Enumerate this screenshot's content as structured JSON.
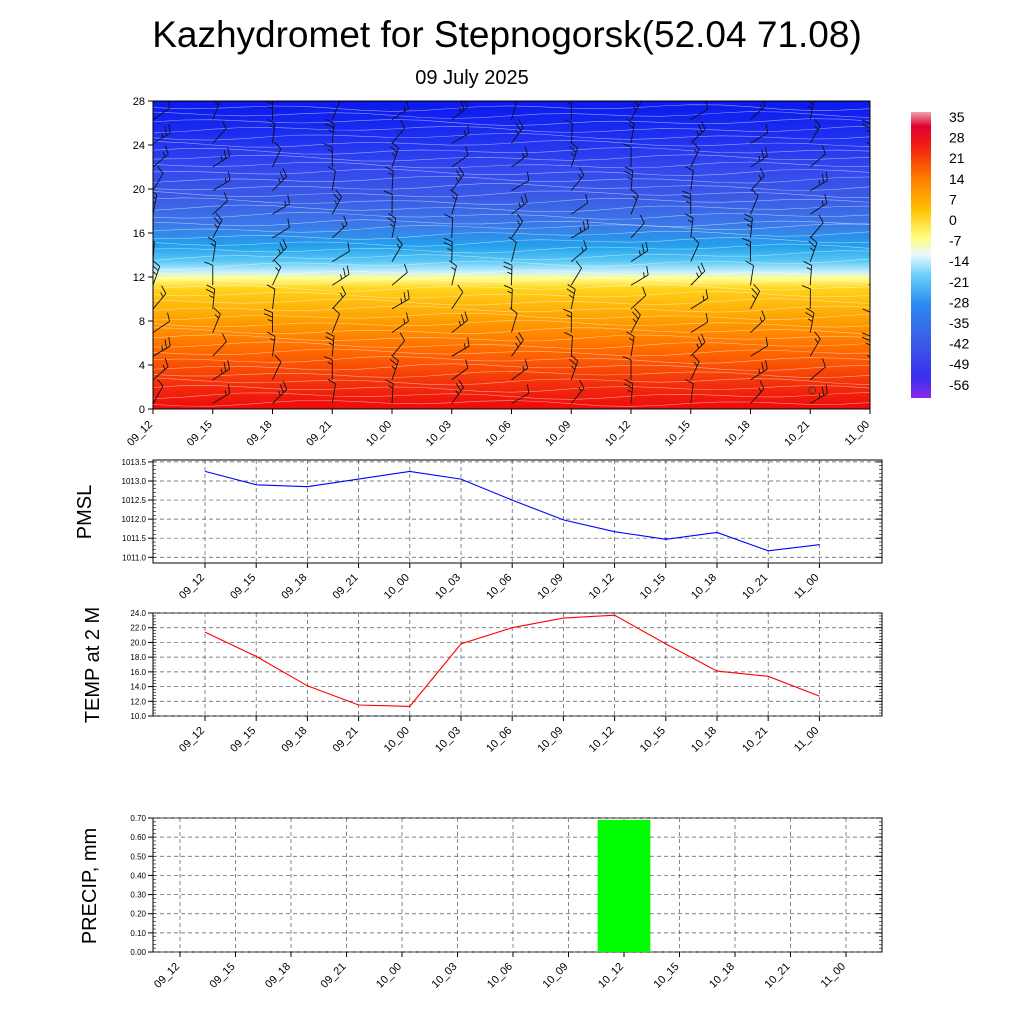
{
  "title": "Kazhydromet for Stepnogorsk(52.04 71.08)",
  "subtitle": "09 July 2025",
  "chart_data": [
    {
      "type": "heatmap",
      "name": "vertical-cross-section",
      "x_ticks": [
        "09_12",
        "09_15",
        "09_18",
        "09_21",
        "10_00",
        "10_03",
        "10_06",
        "10_09",
        "10_12",
        "10_15",
        "10_18",
        "10_21",
        "11_00"
      ],
      "y_ticks": [
        0,
        4,
        8,
        12,
        16,
        20,
        24,
        28
      ],
      "ylim": [
        0,
        28
      ],
      "colorbar_labels": [
        35,
        28,
        21,
        14,
        7,
        0,
        -7,
        -14,
        -21,
        -28,
        -35,
        -42,
        -49,
        -56
      ],
      "colors": {
        "surface": "#f01010",
        "mid_low": "#ff9a00",
        "freezing": "#ffffa0",
        "mid_high": "#30b0f0",
        "upper": "#2040e8",
        "top": "#0a14f0"
      }
    },
    {
      "type": "line",
      "ylabel": "PMSL",
      "x": [
        "09_12",
        "09_15",
        "09_18",
        "09_21",
        "10_00",
        "10_03",
        "10_06",
        "10_09",
        "10_12",
        "10_15",
        "10_18",
        "10_21",
        "11_00"
      ],
      "y_ticks": [
        "1011.0",
        "1011.5",
        "1012.0",
        "1012.5",
        "1013.0",
        "1013.5"
      ],
      "ylim": [
        1010.85,
        1013.55
      ],
      "series": [
        {
          "values": [
            1013.25,
            1012.9,
            1012.85,
            1013.05,
            1013.25,
            1013.05,
            1012.5,
            1011.98,
            1011.67,
            1011.47,
            1011.65,
            1011.17,
            1011.33
          ],
          "color": "#0000ff"
        }
      ]
    },
    {
      "type": "line",
      "ylabel": "TEMP at 2 M",
      "x": [
        "09_12",
        "09_15",
        "09_18",
        "09_21",
        "10_00",
        "10_03",
        "10_06",
        "10_09",
        "10_12",
        "10_15",
        "10_18",
        "10_21",
        "11_00"
      ],
      "y_ticks": [
        "10.0",
        "12.0",
        "14.0",
        "16.0",
        "18.0",
        "20.0",
        "22.0",
        "24.0"
      ],
      "ylim": [
        10,
        24
      ],
      "series": [
        {
          "values": [
            21.4,
            18.1,
            14.1,
            11.5,
            11.3,
            19.8,
            22.0,
            23.3,
            23.7,
            19.8,
            16.1,
            15.4,
            12.7
          ],
          "color": "#ff0000"
        }
      ]
    },
    {
      "type": "bar",
      "ylabel": "PRECIP, mm",
      "x": [
        "09_12",
        "09_15",
        "09_18",
        "09_21",
        "10_00",
        "10_03",
        "10_06",
        "10_09",
        "10_12",
        "10_15",
        "10_18",
        "10_21",
        "11_00"
      ],
      "y_ticks": [
        "0.00",
        "0.10",
        "0.20",
        "0.30",
        "0.40",
        "0.50",
        "0.60",
        "0.70"
      ],
      "ylim": [
        0,
        0.7
      ],
      "values": [
        0,
        0,
        0,
        0,
        0,
        0,
        0,
        0,
        0.69,
        0,
        0,
        0,
        0
      ],
      "color": "#00ff00"
    }
  ]
}
